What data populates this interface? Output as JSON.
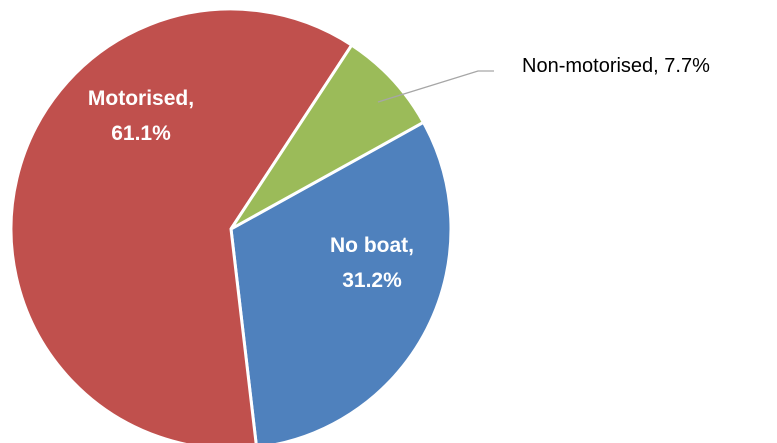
{
  "chart_data": {
    "type": "pie",
    "title": "",
    "slices": [
      {
        "label": "No boat",
        "value": 31.2,
        "display": "31.2%",
        "color": "#4f81bd"
      },
      {
        "label": "Motorised",
        "value": 61.1,
        "display": "61.1%",
        "color": "#c0504d"
      },
      {
        "label": "Non-motorised",
        "value": 7.7,
        "display": "7.7%",
        "color": "#9bbb59"
      }
    ],
    "start_angle_deg": 61,
    "direction": "clockwise",
    "legend": "none",
    "data_labels": "category name and percentage"
  }
}
